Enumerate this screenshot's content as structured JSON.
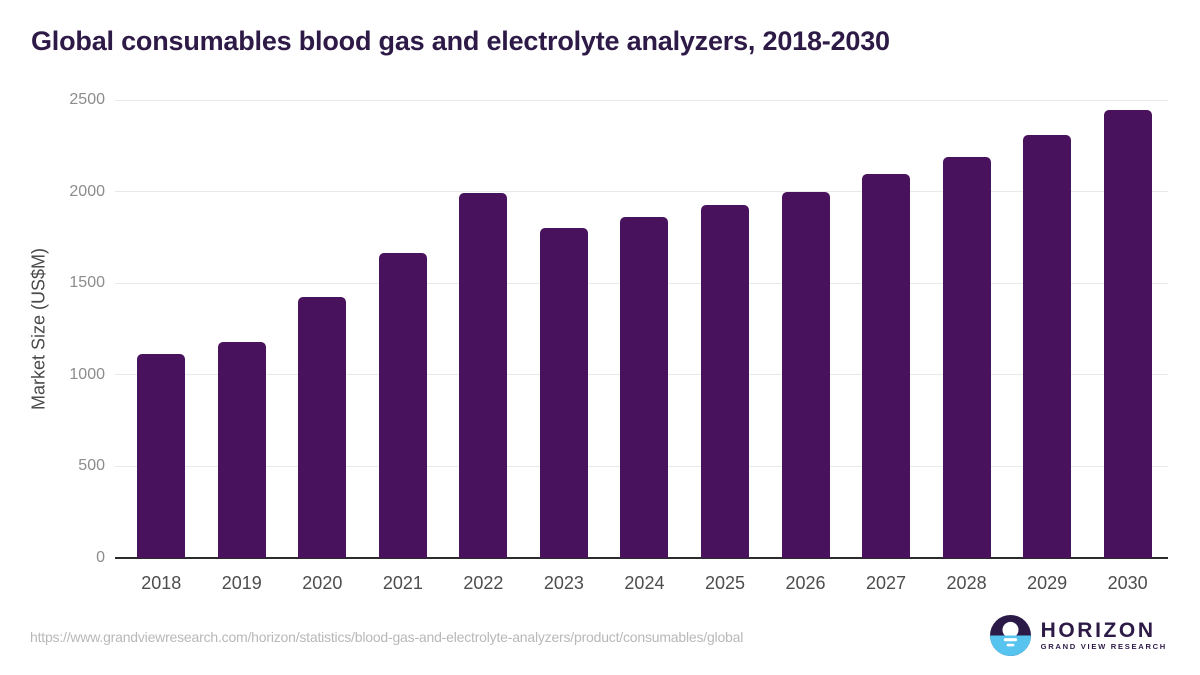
{
  "page": {
    "title": "Global consumables blood gas and electrolyte analyzers, 2018-2030"
  },
  "chart_data": {
    "type": "bar",
    "title": "Global consumables blood gas and electrolyte analyzers, 2018-2030",
    "categories": [
      "2018",
      "2019",
      "2020",
      "2021",
      "2022",
      "2023",
      "2024",
      "2025",
      "2026",
      "2027",
      "2028",
      "2029",
      "2030"
    ],
    "values": [
      1115,
      1180,
      1425,
      1665,
      1990,
      1800,
      1860,
      1925,
      2000,
      2095,
      2190,
      2310,
      2445
    ],
    "xlabel": "",
    "ylabel": "Market Size (US$M)",
    "ylim": [
      0,
      2500
    ],
    "yticks": [
      0,
      500,
      1000,
      1500,
      2000,
      2500
    ],
    "grid": true,
    "legend": false,
    "bar_color": "#49125C"
  },
  "footer": {
    "source_url": "https://www.grandviewresearch.com/horizon/statistics/blood-gas-and-electrolyte-analyzers/product/consumables/global",
    "logo": {
      "title": "HORIZON",
      "subtitle": "GRAND VIEW RESEARCH"
    }
  },
  "colors": {
    "title_text": "#2E1A47",
    "bar": "#49125C",
    "axis_label": "#4A4A4A",
    "tick_label": "#8C8C8C",
    "gridline": "#E9E9E9",
    "baseline": "#2B2B2B",
    "url_text": "#B8B8B8",
    "logo_purple": "#2B1A47",
    "logo_blue": "#57C4EF"
  }
}
